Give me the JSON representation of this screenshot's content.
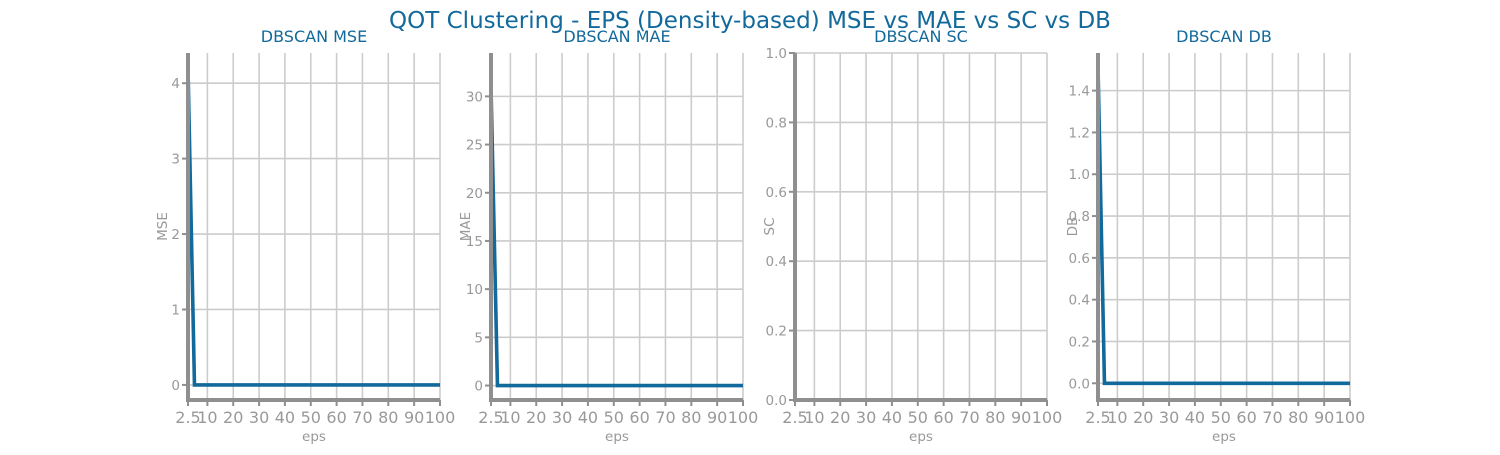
{
  "suptitle": "QOT Clustering - EPS (Density-based) MSE vs MAE vs SC vs DB",
  "colors": {
    "title": "#12699b",
    "line": "#12699b",
    "axis": "#8f8f8f",
    "grid": "#cccccc",
    "text": "#999999"
  },
  "chart_data": [
    {
      "type": "line",
      "title": "DBSCAN MSE",
      "xlabel": "eps",
      "ylabel": "MSE",
      "xticks": [
        2.5,
        10,
        20,
        30,
        40,
        50,
        60,
        70,
        80,
        90,
        100
      ],
      "xtick_labels": [
        "2.5",
        "10",
        "20",
        "30",
        "40",
        "50",
        "60",
        "70",
        "80",
        "90",
        "100"
      ],
      "xlim": [
        2.5,
        100
      ],
      "ylim": [
        -0.2,
        4.4
      ],
      "yticks": [
        0,
        1,
        2,
        3,
        4
      ],
      "ytick_labels": [
        "0",
        "1",
        "2",
        "3",
        "4"
      ],
      "grid": true,
      "series": [
        {
          "x": [
            2.5,
            5,
            100
          ],
          "y": [
            4.2,
            0,
            0
          ]
        }
      ]
    },
    {
      "type": "line",
      "title": "DBSCAN MAE",
      "xlabel": "eps",
      "ylabel": "MAE",
      "xticks": [
        2.5,
        10,
        20,
        30,
        40,
        50,
        60,
        70,
        80,
        90,
        100
      ],
      "xtick_labels": [
        "2.5",
        "10",
        "20",
        "30",
        "40",
        "50",
        "60",
        "70",
        "80",
        "90",
        "100"
      ],
      "xlim": [
        2.5,
        100
      ],
      "ylim": [
        -1.5,
        34.5
      ],
      "yticks": [
        0,
        5,
        10,
        15,
        20,
        25,
        30
      ],
      "ytick_labels": [
        "0",
        "5",
        "10",
        "15",
        "20",
        "25",
        "30"
      ],
      "grid": true,
      "series": [
        {
          "x": [
            2.5,
            5,
            100
          ],
          "y": [
            31,
            0,
            0
          ]
        }
      ]
    },
    {
      "type": "line",
      "title": "DBSCAN SC",
      "xlabel": "eps",
      "ylabel": "SC",
      "xticks": [
        2.5,
        10,
        20,
        30,
        40,
        50,
        60,
        70,
        80,
        90,
        100
      ],
      "xtick_labels": [
        "2.5",
        "10",
        "20",
        "30",
        "40",
        "50",
        "60",
        "70",
        "80",
        "90",
        "100"
      ],
      "xlim": [
        2.5,
        100
      ],
      "ylim": [
        0,
        1.0
      ],
      "yticks": [
        0,
        0.2,
        0.4,
        0.6,
        0.8,
        1.0
      ],
      "ytick_labels": [
        "0.0",
        "0.2",
        "0.4",
        "0.6",
        "0.8",
        "1.0"
      ],
      "grid": true,
      "series": [
        {
          "x": [
            2.5,
            5,
            100
          ],
          "y": [
            0,
            0,
            0
          ]
        }
      ]
    },
    {
      "type": "line",
      "title": "DBSCAN DB",
      "xlabel": "eps",
      "ylabel": "DB",
      "xticks": [
        2.5,
        10,
        20,
        30,
        40,
        50,
        60,
        70,
        80,
        90,
        100
      ],
      "xtick_labels": [
        "2.5",
        "10",
        "20",
        "30",
        "40",
        "50",
        "60",
        "70",
        "80",
        "90",
        "100"
      ],
      "xlim": [
        2.5,
        100
      ],
      "ylim": [
        -0.08,
        1.58
      ],
      "yticks": [
        0,
        0.2,
        0.4,
        0.6,
        0.8,
        1.0,
        1.2,
        1.4
      ],
      "ytick_labels": [
        "0.0",
        "0.2",
        "0.4",
        "0.6",
        "0.8",
        "1.0",
        "1.2",
        "1.4"
      ],
      "grid": true,
      "series": [
        {
          "x": [
            2.5,
            5,
            100
          ],
          "y": [
            1.52,
            0,
            0
          ]
        }
      ]
    }
  ]
}
